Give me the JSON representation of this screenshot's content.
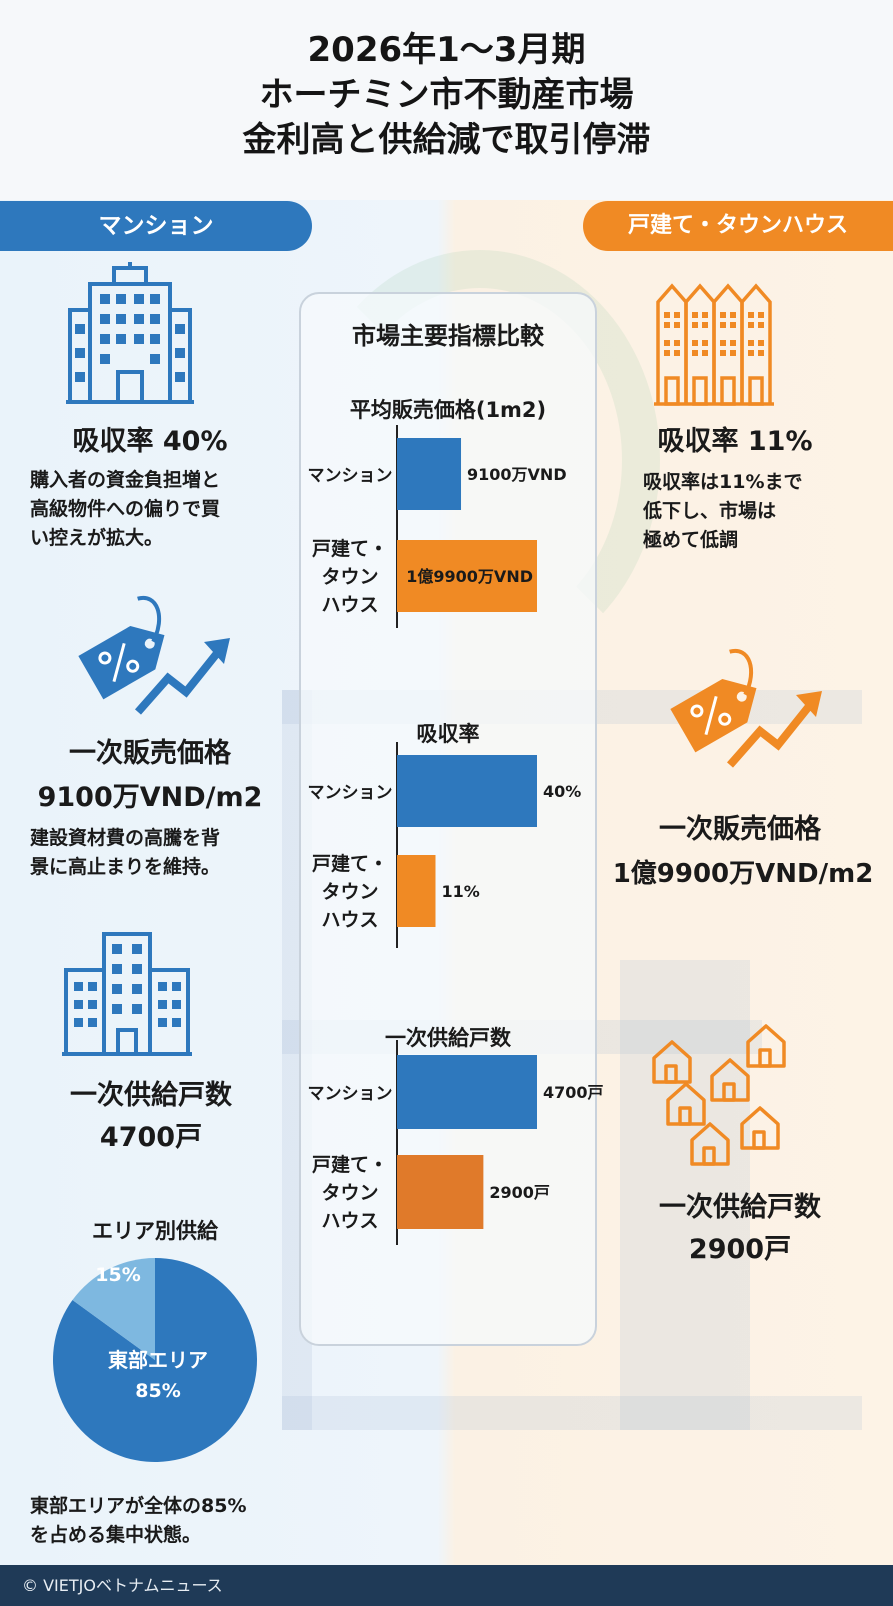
{
  "title": {
    "line1": "2026年1〜3月期",
    "line2": "ホーチミン市不動産市場",
    "line3": "金利高と供給減で取引停滞"
  },
  "left": {
    "header": "マンション",
    "absorption": "吸収率 40%",
    "absorption_desc": [
      "購入者の資金負担増と",
      "高級物件への偏りで買",
      "い控えが拡大。"
    ],
    "price_label": "一次販売価格",
    "price_value": "9100万VND/m2",
    "price_desc": [
      "建設資材費の高騰を背",
      "景に高止まりを維持。"
    ],
    "supply_label": "一次供給戸数",
    "supply_value": "4700戸",
    "area_title": "エリア別供給",
    "area_desc": [
      "東部エリアが全体の85%",
      "を占める集中状態。"
    ]
  },
  "right": {
    "header": "戸建て・タウンハウス",
    "absorption": "吸収率 11%",
    "absorption_desc": [
      "吸収率は11%まで",
      "低下し、市場は",
      "極めて低調"
    ],
    "price_label": "一次販売価格",
    "price_value": "1億9900万VND/m2",
    "supply_label": "一次供給戸数",
    "supply_value": "2900戸"
  },
  "panel": {
    "title": "市場主要指標比較"
  },
  "colors": {
    "blue": "#2e78bd",
    "orange": "#f08a24",
    "pie_main": "#2e78bd",
    "pie_minor": "#7eb8e0"
  },
  "chart_data": [
    {
      "type": "bar",
      "orientation": "horizontal",
      "title": "平均販売価格(1m2)",
      "categories": [
        "マンション",
        "戸建て・タウンハウス"
      ],
      "values": [
        91000000,
        199000000
      ],
      "value_labels": [
        "9100万VND",
        "1億9900万VND"
      ],
      "colors": [
        "#2e78bd",
        "#f08a24"
      ],
      "xlim": [
        0,
        199000000
      ]
    },
    {
      "type": "bar",
      "orientation": "horizontal",
      "title": "吸収率",
      "categories": [
        "マンション",
        "戸建て・タウンハウス"
      ],
      "values": [
        40,
        11
      ],
      "value_labels": [
        "40%",
        "11%"
      ],
      "colors": [
        "#2e78bd",
        "#f08a24"
      ],
      "xlim": [
        0,
        40
      ]
    },
    {
      "type": "bar",
      "orientation": "horizontal",
      "title": "一次供給戸数",
      "categories": [
        "マンション",
        "戸建て・タウンハウス"
      ],
      "values": [
        4700,
        2900
      ],
      "value_labels": [
        "4700戸",
        "2900戸"
      ],
      "colors": [
        "#2e78bd",
        "#e07a2a"
      ],
      "xlim": [
        0,
        4700
      ]
    },
    {
      "type": "pie",
      "title": "エリア別供給",
      "slices": [
        {
          "label": "東部エリア",
          "value": 85,
          "value_label": "85%",
          "color": "#2e78bd"
        },
        {
          "label": "",
          "value": 15,
          "value_label": "15%",
          "color": "#7eb8e0"
        }
      ]
    }
  ],
  "footer": "© VIETJOベトナムニュース"
}
